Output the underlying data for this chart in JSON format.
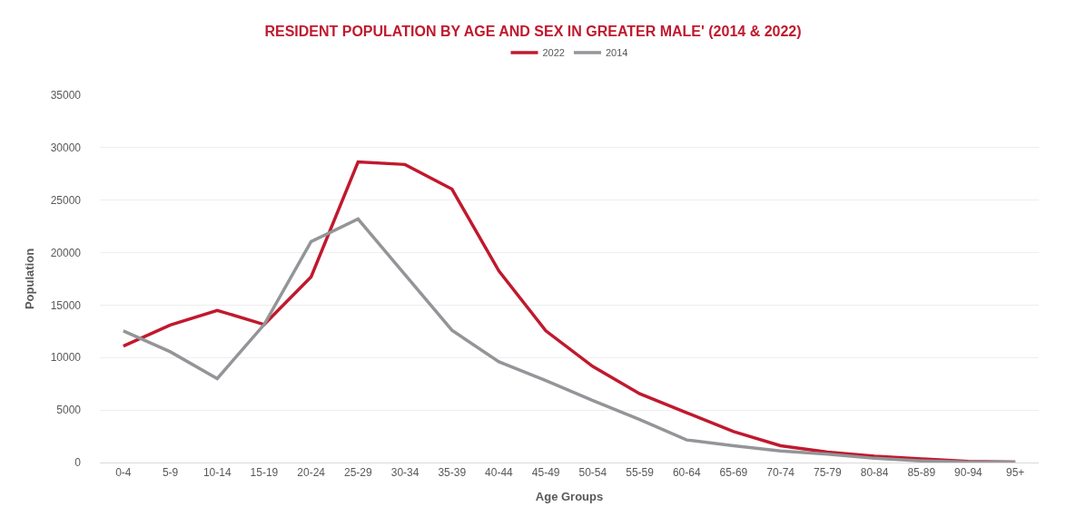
{
  "chart_data": {
    "type": "line",
    "title": "RESIDENT POPULATION BY AGE AND SEX IN GREATER MALE' (2014 & 2022)",
    "xlabel": "Age Groups",
    "ylabel": "Population",
    "categories": [
      "0-4",
      "5-9",
      "10-14",
      "15-19",
      "20-24",
      "25-29",
      "30-34",
      "35-39",
      "40-44",
      "45-49",
      "50-54",
      "55-59",
      "60-64",
      "65-69",
      "70-74",
      "75-79",
      "80-84",
      "85-89",
      "90-94",
      "95+"
    ],
    "series": [
      {
        "name": "2022",
        "color": "#c0192e",
        "values": [
          11100,
          13100,
          14500,
          13150,
          17700,
          28650,
          28400,
          26050,
          18250,
          12550,
          9150,
          6550,
          4750,
          2950,
          1600,
          1000,
          600,
          350,
          100,
          50
        ]
      },
      {
        "name": "2014",
        "color": "#939598",
        "values": [
          12550,
          10550,
          8000,
          13150,
          21050,
          23200,
          17900,
          12600,
          9600,
          7800,
          5900,
          4100,
          2150,
          1600,
          1100,
          800,
          400,
          150,
          50,
          50
        ]
      }
    ],
    "ylim": [
      0,
      35000
    ],
    "yticks": [
      0,
      5000,
      10000,
      15000,
      20000,
      25000,
      30000,
      35000
    ],
    "grid": "y",
    "legend": "top",
    "marker": "none",
    "line_style": "solid"
  }
}
